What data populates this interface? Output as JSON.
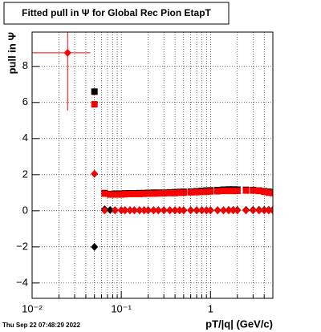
{
  "chart_data": {
    "type": "scatter",
    "title": "Fitted pull in  Ψ  for Global Rec Pion EtapT",
    "x_label": "pT/|q| (GeV/c)",
    "y_label": "pull in  Ψ",
    "timestamp": "Thu Sep 22 07:48:29 2022",
    "x_log": true,
    "grid": true,
    "xlim": [
      0.01,
      5
    ],
    "xticks": [
      {
        "value": 0.01,
        "label": "10⁻²"
      },
      {
        "value": 0.1,
        "label": "10⁻¹"
      },
      1
    ],
    "xminorticks": [
      0.02,
      0.03,
      0.04,
      0.05,
      0.06,
      0.07,
      0.08,
      0.09,
      0.2,
      0.3,
      0.4,
      0.5,
      0.6,
      0.7,
      0.8,
      0.9,
      2,
      3,
      4
    ],
    "ylim": [
      -4.85,
      9.9
    ],
    "yticks": [
      {
        "value": -4,
        "label": "−4"
      },
      {
        "value": -2,
        "label": "−2"
      },
      0,
      2,
      4,
      6,
      8
    ],
    "series": [
      {
        "marker": "square",
        "color": "#000000",
        "x": [
          0.05,
          0.065,
          0.075,
          0.085,
          0.1,
          0.11,
          0.125,
          0.14,
          0.16,
          0.18,
          0.2,
          0.23,
          0.26,
          0.3,
          0.35,
          0.4,
          0.45,
          0.5,
          0.6,
          0.7,
          0.8,
          0.9,
          1,
          1.2,
          1.4,
          1.6,
          1.8,
          2,
          2.5,
          3,
          3.5,
          4,
          4.5,
          5
        ],
        "values": [
          6.6,
          0.98,
          0.93,
          0.95,
          0.95,
          0.96,
          0.97,
          0.97,
          0.98,
          0.98,
          0.99,
          1.0,
          1.0,
          1.0,
          1.02,
          1.03,
          1.04,
          1.05,
          1.06,
          1.08,
          1.1,
          1.12,
          1.13,
          1.15,
          1.17,
          1.18,
          1.18,
          1.17,
          1.16,
          1.15,
          1.12,
          1.08,
          1.05,
          1.02
        ]
      },
      {
        "marker": "diamond",
        "color": "#000000",
        "x": [
          0.05,
          0.065,
          0.075,
          0.085,
          0.1,
          0.11,
          0.125,
          0.14,
          0.16,
          0.18,
          0.2,
          0.23,
          0.26,
          0.3,
          0.35,
          0.4,
          0.45,
          0.5,
          0.6,
          0.7,
          0.8,
          0.9,
          1,
          1.2,
          1.4,
          1.6,
          1.8,
          2,
          2.5,
          3,
          3.5,
          4,
          4.5,
          5
        ],
        "values": [
          -2.0,
          0.08,
          0.04,
          0.03,
          0.03,
          0.03,
          0.03,
          0.03,
          0.03,
          0.03,
          0.03,
          0.03,
          0.03,
          0.03,
          0.03,
          0.03,
          0.03,
          0.03,
          0.03,
          0.03,
          0.03,
          0.03,
          0.03,
          0.03,
          0.03,
          0.04,
          0.04,
          0.04,
          0.05,
          0.05,
          0.05,
          0.05,
          0.05,
          0.05
        ]
      },
      {
        "marker": "square",
        "color": "#ff0000",
        "x": [
          0.05,
          0.065,
          0.075,
          0.085,
          0.1,
          0.11,
          0.125,
          0.14,
          0.16,
          0.18,
          0.2,
          0.23,
          0.26,
          0.3,
          0.35,
          0.4,
          0.45,
          0.5,
          0.6,
          0.7,
          0.8,
          0.9,
          1,
          1.2,
          1.4,
          1.6,
          1.8,
          2,
          2.5,
          3,
          3.5,
          4,
          4.5,
          5
        ],
        "values": [
          5.9,
          0.95,
          0.9,
          0.9,
          0.9,
          0.92,
          0.93,
          0.93,
          0.93,
          0.94,
          0.95,
          0.95,
          0.96,
          0.97,
          0.98,
          0.98,
          1.0,
          1.0,
          1.02,
          1.03,
          1.05,
          1.05,
          1.07,
          1.08,
          1.1,
          1.1,
          1.1,
          1.1,
          1.12,
          1.12,
          1.1,
          1.05,
          1.0,
          0.98
        ]
      },
      {
        "marker": "diamond",
        "color": "#ff0000",
        "x": [
          0.05,
          0.065,
          0.085,
          0.1,
          0.11,
          0.125,
          0.14,
          0.16,
          0.18,
          0.2,
          0.23,
          0.26,
          0.3,
          0.35,
          0.4,
          0.45,
          0.5,
          0.6,
          0.7,
          0.8,
          0.9,
          1,
          1.2,
          1.4,
          1.6,
          1.8,
          2,
          2.5,
          3,
          3.5,
          4,
          4.5,
          5
        ],
        "values": [
          2.05,
          0.02,
          0.02,
          0.02,
          0.02,
          0.02,
          0.02,
          0.02,
          0.02,
          0.02,
          0.02,
          0.02,
          0.02,
          0.02,
          0.02,
          0.02,
          0.02,
          0.02,
          0.02,
          0.02,
          0.02,
          0.02,
          0.02,
          0.02,
          0.02,
          0.02,
          0.02,
          0.02,
          0.02,
          0.02,
          0.02,
          0.02,
          0.02
        ]
      },
      {
        "marker": "diamond",
        "color": "#ff0000",
        "x": [
          0.025
        ],
        "values": [
          8.75
        ],
        "yerr": [
          3.2
        ],
        "xerr": [
          0.02
        ]
      }
    ]
  }
}
